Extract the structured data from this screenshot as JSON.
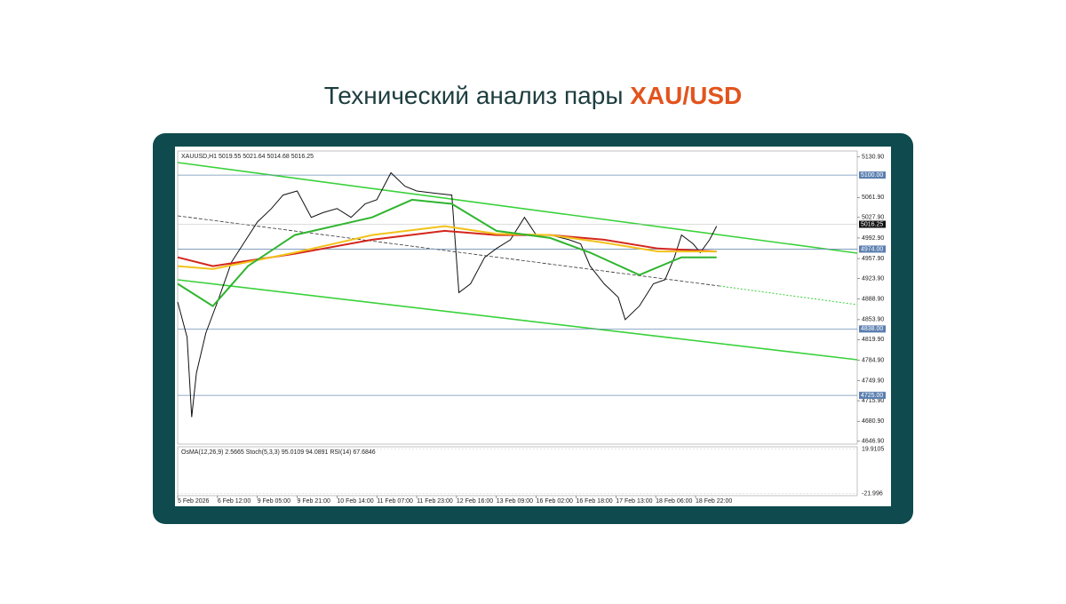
{
  "header": {
    "title": "Технический анализ пары",
    "highlight": "XAU/USD"
  },
  "chart_data": {
    "type": "line",
    "title": "XAUUSD,H1 5019.55 5021.64 5014.68 5016.25",
    "xlim": [
      0,
      290
    ],
    "xticks": [
      {
        "value": 0,
        "label": "5 Feb 2026"
      },
      {
        "value": 17,
        "label": "6 Feb 12:00"
      },
      {
        "value": 34,
        "label": "9 Feb 05:00"
      },
      {
        "value": 51,
        "label": "9 Feb 21:00"
      },
      {
        "value": 68,
        "label": "10 Feb 14:00"
      },
      {
        "value": 85,
        "label": "11 Feb 07:00"
      },
      {
        "value": 102,
        "label": "11 Feb 23:00"
      },
      {
        "value": 119,
        "label": "12 Feb 16:00"
      },
      {
        "value": 136,
        "label": "13 Feb 09:00"
      },
      {
        "value": 153,
        "label": "16 Feb 02:00"
      },
      {
        "value": 170,
        "label": "16 Feb 18:00"
      },
      {
        "value": 187,
        "label": "17 Feb 13:00"
      },
      {
        "value": 204,
        "label": "18 Feb 06:00"
      },
      {
        "value": 221,
        "label": "18 Feb 22:00"
      }
    ],
    "ylim": [
      4642,
      5141
    ],
    "yticks": [
      {
        "value": 5130.9,
        "label": "5130.90"
      },
      {
        "value": 5061.9,
        "label": "5061.90"
      },
      {
        "value": 5027.9,
        "label": "5027.90"
      },
      {
        "value": 4992.9,
        "label": "4992.90"
      },
      {
        "value": 4957.9,
        "label": "4957.90"
      },
      {
        "value": 4923.9,
        "label": "4923.90"
      },
      {
        "value": 4888.9,
        "label": "4888.90"
      },
      {
        "value": 4853.9,
        "label": "4853.90"
      },
      {
        "value": 4819.9,
        "label": "4819.90"
      },
      {
        "value": 4784.9,
        "label": "4784.90"
      },
      {
        "value": 4749.9,
        "label": "4749.90"
      },
      {
        "value": 4715.9,
        "label": "4715.90"
      },
      {
        "value": 4680.9,
        "label": "4680.90"
      },
      {
        "value": 4646.9,
        "label": "4646.90"
      }
    ],
    "levels": [
      {
        "value": 5100,
        "label": "5100.00"
      },
      {
        "value": 4974,
        "label": "4974.00"
      },
      {
        "value": 4838,
        "label": "4838.00"
      },
      {
        "value": 4725,
        "label": "4725.00"
      }
    ],
    "current": {
      "value": 5016.25,
      "label": "5016.25"
    },
    "series": [
      {
        "color": "#111111",
        "x": [
          0,
          4,
          6,
          8,
          12,
          17,
          23,
          28,
          34,
          40,
          45,
          51,
          57,
          62,
          68,
          74,
          80,
          85,
          91,
          97,
          102,
          110,
          117,
          120,
          125,
          131,
          136,
          142,
          148,
          153,
          159,
          167,
          172,
          176,
          182,
          188,
          191,
          197,
          203,
          208,
          212,
          215,
          220,
          223,
          227,
          230
        ],
        "values": [
          4884,
          4824,
          4688,
          4763,
          4831,
          4884,
          4952,
          4983,
          5020,
          5043,
          5066,
          5073,
          5028,
          5036,
          5043,
          5028,
          5051,
          5058,
          5104,
          5081,
          5073,
          5069,
          5066,
          4900,
          4915,
          4960,
          4975,
          4990,
          5028,
          4998,
          4998,
          4990,
          4983,
          4945,
          4915,
          4892,
          4854,
          4877,
          4915,
          4922,
          4960,
          4998,
          4983,
          4968,
          4990,
          5013
        ]
      },
      {
        "color": "#d4261c",
        "x": [
          0,
          15,
          50,
          83,
          114,
          136,
          159,
          182,
          205,
          230
        ],
        "values": [
          4960,
          4945,
          4966,
          4990,
          5005,
          4998,
          4998,
          4990,
          4975,
          4970
        ]
      },
      {
        "color": "#f2c21b",
        "x": [
          0,
          15,
          50,
          83,
          114,
          136,
          159,
          182,
          205,
          230
        ],
        "values": [
          4945,
          4940,
          4968,
          4998,
          5013,
          5000,
          4998,
          4985,
          4970,
          4970
        ]
      },
      {
        "color": "#2fb52f",
        "x": [
          0,
          15,
          30,
          50,
          83,
          100,
          117,
          136,
          159,
          176,
          197,
          215,
          230
        ],
        "values": [
          4915,
          4877,
          4945,
          4998,
          5028,
          5058,
          5051,
          5005,
          4993,
          4968,
          4930,
          4960,
          4960
        ]
      }
    ],
    "indicator_label": "OsMA(12,26,9) 2.5665 Stoch(5,3,3) 95.0109 94.0891 RSI(14) 67.6846",
    "indicator_ylim": [
      -24,
      22
    ],
    "indicator_ticks": [
      {
        "value": 19.9105,
        "label": "19.9105"
      },
      {
        "value": -21.996,
        "label": "-21.996"
      }
    ]
  }
}
